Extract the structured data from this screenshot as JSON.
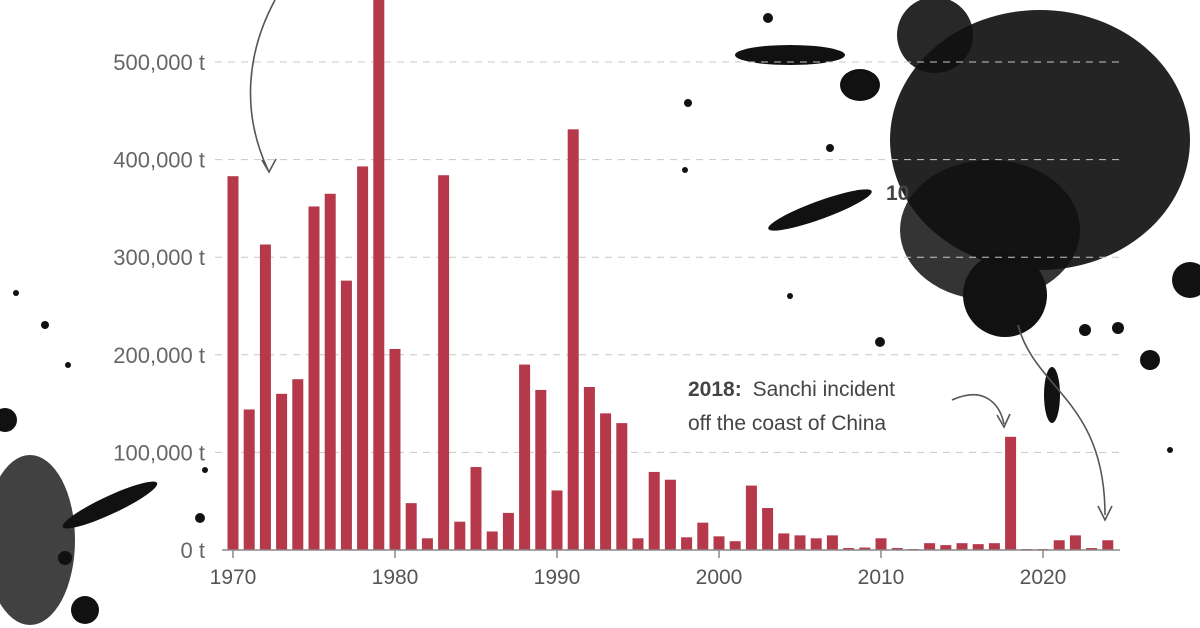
{
  "chart_data": {
    "type": "bar",
    "title": "",
    "xlabel": "",
    "ylabel": "",
    "ylim": [
      0,
      580000
    ],
    "y_ticks": [
      0,
      100000,
      200000,
      300000,
      400000,
      500000
    ],
    "y_tick_labels": [
      "0 t",
      "100,000 t",
      "200,000 t",
      "300,000 t",
      "400,000 t",
      "500,000 t"
    ],
    "x_ticks": [
      1970,
      1980,
      1990,
      2000,
      2010,
      2020
    ],
    "x_tick_labels": [
      "1970",
      "1980",
      "1990",
      "2000",
      "2010",
      "2020"
    ],
    "grid": true,
    "bar_color": "#b5394b",
    "categories": [
      1970,
      1971,
      1972,
      1973,
      1974,
      1975,
      1976,
      1977,
      1978,
      1979,
      1980,
      1981,
      1982,
      1983,
      1984,
      1985,
      1986,
      1987,
      1988,
      1989,
      1990,
      1991,
      1992,
      1993,
      1994,
      1995,
      1996,
      1997,
      1998,
      1999,
      2000,
      2001,
      2002,
      2003,
      2004,
      2005,
      2006,
      2007,
      2008,
      2009,
      2010,
      2011,
      2012,
      2013,
      2014,
      2015,
      2016,
      2017,
      2018,
      2019,
      2020,
      2021,
      2022,
      2023,
      2024
    ],
    "values": [
      383000,
      144000,
      313000,
      160000,
      175000,
      352000,
      365000,
      276000,
      393000,
      580000,
      206000,
      48000,
      12000,
      384000,
      29000,
      85000,
      19000,
      38000,
      190000,
      164000,
      61000,
      431000,
      167000,
      140000,
      130000,
      12000,
      80000,
      72000,
      13000,
      28000,
      14000,
      9000,
      66000,
      43000,
      17000,
      15000,
      12000,
      15000,
      2000,
      2500,
      12000,
      2000,
      1000,
      7000,
      5000,
      7000,
      6000,
      7000,
      116000,
      1000,
      1000,
      10000,
      15000,
      2000,
      10000
    ],
    "annotations": [
      {
        "year": 2018,
        "bold": "2018:",
        "line1": "Sanchi incident",
        "line2": "off the coast of China"
      },
      {
        "partial_text": "10"
      }
    ]
  }
}
